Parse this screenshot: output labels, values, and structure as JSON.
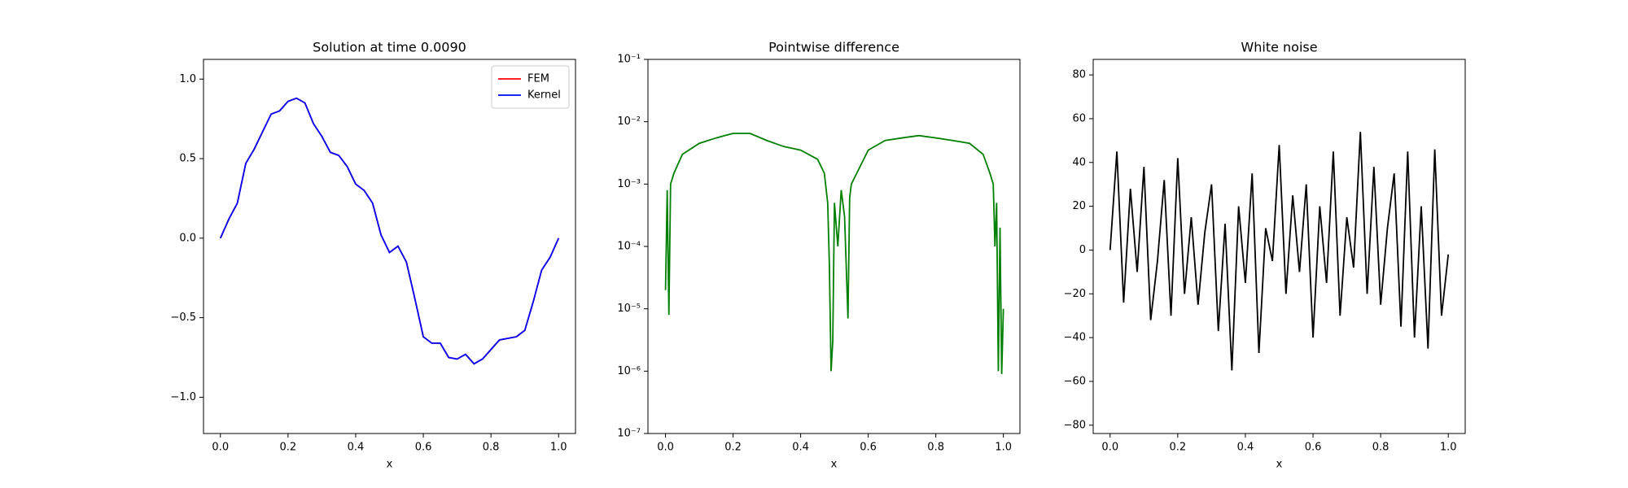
{
  "chart_data": [
    {
      "type": "line",
      "title": "Solution at time 0.0090",
      "x_label": "x",
      "x": [
        0,
        0.025,
        0.05,
        0.075,
        0.1,
        0.125,
        0.15,
        0.175,
        0.2,
        0.225,
        0.25,
        0.275,
        0.3,
        0.325,
        0.35,
        0.375,
        0.4,
        0.425,
        0.45,
        0.475,
        0.5,
        0.525,
        0.55,
        0.575,
        0.6,
        0.625,
        0.65,
        0.675,
        0.7,
        0.725,
        0.75,
        0.775,
        0.8,
        0.825,
        0.85,
        0.875,
        0.9,
        0.925,
        0.95,
        0.975,
        1.0
      ],
      "series": [
        {
          "name": "FEM",
          "color": "#ff0000",
          "values": [
            0,
            0.12,
            0.22,
            0.47,
            0.56,
            0.67,
            0.78,
            0.8,
            0.86,
            0.88,
            0.85,
            0.72,
            0.64,
            0.54,
            0.52,
            0.45,
            0.34,
            0.3,
            0.22,
            0.02,
            -0.09,
            -0.05,
            -0.15,
            -0.38,
            -0.62,
            -0.66,
            -0.66,
            -0.75,
            -0.76,
            -0.73,
            -0.79,
            -0.76,
            -0.7,
            -0.64,
            -0.63,
            -0.62,
            -0.58,
            -0.4,
            -0.2,
            -0.12,
            0
          ]
        },
        {
          "name": "Kernel",
          "color": "#0000ff",
          "values": [
            0,
            0.12,
            0.22,
            0.47,
            0.56,
            0.67,
            0.78,
            0.8,
            0.86,
            0.88,
            0.85,
            0.72,
            0.64,
            0.54,
            0.52,
            0.45,
            0.34,
            0.3,
            0.22,
            0.02,
            -0.09,
            -0.05,
            -0.15,
            -0.38,
            -0.62,
            -0.66,
            -0.66,
            -0.75,
            -0.76,
            -0.73,
            -0.79,
            -0.76,
            -0.7,
            -0.64,
            -0.63,
            -0.62,
            -0.58,
            -0.4,
            -0.2,
            -0.12,
            0
          ]
        }
      ],
      "xlim": [
        -0.05,
        1.05
      ],
      "xticks": [
        {
          "value": 0,
          "label": "0.0"
        },
        {
          "value": 0.2,
          "label": "0.2"
        },
        {
          "value": 0.4,
          "label": "0.4"
        },
        {
          "value": 0.6,
          "label": "0.6"
        },
        {
          "value": 0.8,
          "label": "0.8"
        },
        {
          "value": 1,
          "label": "1.0"
        }
      ],
      "ylim": [
        -1.228,
        1.124
      ],
      "yticks": [
        {
          "value": -1,
          "label": "−1.0"
        },
        {
          "value": -0.5,
          "label": "−0.5"
        },
        {
          "value": 0,
          "label": "0.0"
        },
        {
          "value": 0.5,
          "label": "0.5"
        },
        {
          "value": 1,
          "label": "1.0"
        }
      ],
      "legend": "upper right"
    },
    {
      "type": "line",
      "title": "Pointwise difference",
      "x_label": "x",
      "yscale": "log",
      "color": "#008000",
      "x": [
        0,
        0.005,
        0.01,
        0.015,
        0.025,
        0.05,
        0.1,
        0.15,
        0.2,
        0.25,
        0.3,
        0.35,
        0.4,
        0.45,
        0.47,
        0.48,
        0.485,
        0.49,
        0.495,
        0.5,
        0.51,
        0.52,
        0.53,
        0.54,
        0.545,
        0.55,
        0.6,
        0.65,
        0.7,
        0.75,
        0.8,
        0.85,
        0.9,
        0.94,
        0.96,
        0.97,
        0.975,
        0.98,
        0.985,
        0.99,
        0.995,
        1.0
      ],
      "values": [
        2e-05,
        0.0008,
        8e-06,
        0.001,
        0.0015,
        0.003,
        0.0045,
        0.0055,
        0.0065,
        0.0065,
        0.005,
        0.004,
        0.0035,
        0.0025,
        0.0015,
        0.0005,
        5e-05,
        1e-06,
        3e-06,
        0.0005,
        0.0001,
        0.0008,
        0.0003,
        7e-06,
        0.0006,
        0.001,
        0.0035,
        0.005,
        0.0055,
        0.006,
        0.0055,
        0.005,
        0.0045,
        0.003,
        0.0015,
        0.001,
        0.0001,
        0.0005,
        1e-06,
        0.0002,
        9e-07,
        1e-05
      ],
      "xlim": [
        -0.052,
        1.049
      ],
      "xticks": [
        {
          "value": 0,
          "label": "0.0"
        },
        {
          "value": 0.2,
          "label": "0.2"
        },
        {
          "value": 0.4,
          "label": "0.4"
        },
        {
          "value": 0.6,
          "label": "0.6"
        },
        {
          "value": 0.8,
          "label": "0.8"
        },
        {
          "value": 1,
          "label": "1.0"
        }
      ],
      "ylim": [
        1e-07,
        0.1
      ],
      "yticks": [
        {
          "value": 1e-07,
          "label": "10⁻⁷"
        },
        {
          "value": 1e-06,
          "label": "10⁻⁶"
        },
        {
          "value": 1e-05,
          "label": "10⁻⁵"
        },
        {
          "value": 0.0001,
          "label": "10⁻⁴"
        },
        {
          "value": 0.001,
          "label": "10⁻³"
        },
        {
          "value": 0.01,
          "label": "10⁻²"
        },
        {
          "value": 0.1,
          "label": "10⁻¹"
        }
      ]
    },
    {
      "type": "line",
      "title": "White noise",
      "x_label": "x",
      "color": "#000000",
      "x": [
        0,
        0.02,
        0.04,
        0.06,
        0.08,
        0.1,
        0.12,
        0.14,
        0.16,
        0.18,
        0.2,
        0.22,
        0.24,
        0.26,
        0.28,
        0.3,
        0.32,
        0.34,
        0.36,
        0.38,
        0.4,
        0.42,
        0.44,
        0.46,
        0.48,
        0.5,
        0.52,
        0.54,
        0.56,
        0.58,
        0.6,
        0.62,
        0.64,
        0.66,
        0.68,
        0.7,
        0.72,
        0.74,
        0.76,
        0.78,
        0.8,
        0.82,
        0.84,
        0.86,
        0.88,
        0.9,
        0.92,
        0.94,
        0.96,
        0.98,
        1.0
      ],
      "values": [
        0,
        45,
        -24,
        28,
        -10,
        38,
        -32,
        -5,
        32,
        -30,
        42,
        -20,
        15,
        -25,
        8,
        30,
        -37,
        12,
        -55,
        20,
        -15,
        35,
        -47,
        10,
        -5,
        48,
        -20,
        25,
        -10,
        30,
        -40,
        20,
        -15,
        45,
        -30,
        15,
        -8,
        54,
        -20,
        38,
        -25,
        10,
        35,
        -35,
        45,
        -40,
        20,
        -45,
        46,
        -30,
        -2
      ],
      "xlim": [
        -0.05,
        1.05
      ],
      "xticks": [
        {
          "value": 0,
          "label": "0.0"
        },
        {
          "value": 0.2,
          "label": "0.2"
        },
        {
          "value": 0.4,
          "label": "0.4"
        },
        {
          "value": 0.6,
          "label": "0.6"
        },
        {
          "value": 0.8,
          "label": "0.8"
        },
        {
          "value": 1,
          "label": "1.0"
        }
      ],
      "ylim": [
        -83.8,
        87.1
      ],
      "yticks": [
        {
          "value": -80,
          "label": "−80"
        },
        {
          "value": -60,
          "label": "−60"
        },
        {
          "value": -40,
          "label": "−40"
        },
        {
          "value": -20,
          "label": "−20"
        },
        0,
        20,
        40,
        60,
        80
      ]
    }
  ]
}
